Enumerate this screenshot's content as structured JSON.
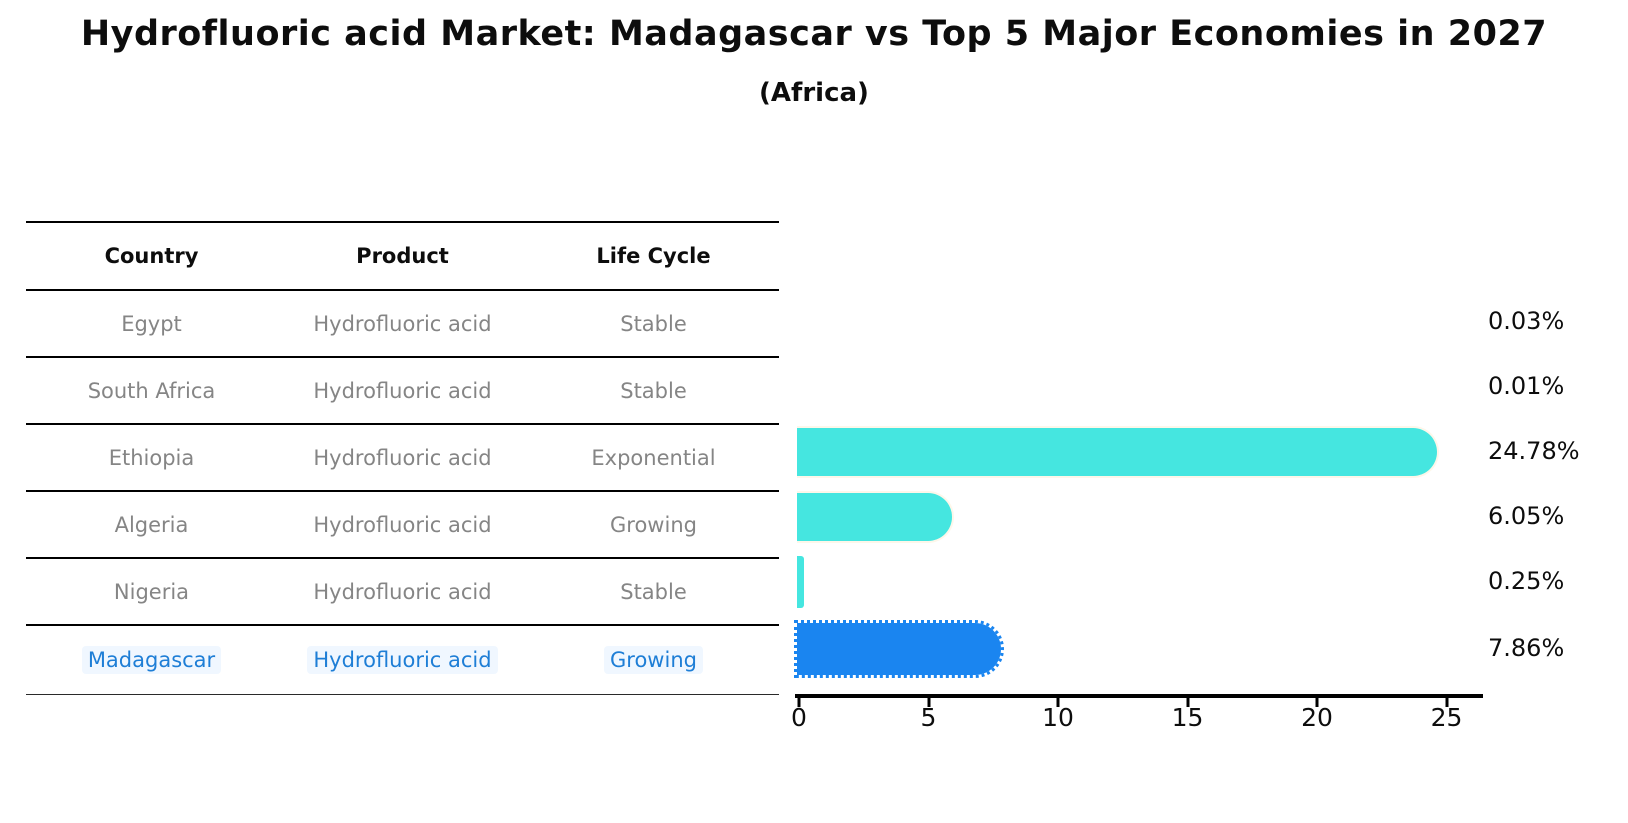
{
  "title": "Hydrofluoric acid Market: Madagascar vs Top 5 Major Economies in 2027",
  "subtitle": "(Africa)",
  "table": {
    "headers": [
      "Country",
      "Product",
      "Life Cycle"
    ],
    "rows": [
      {
        "country": "Egypt",
        "product": "Hydrofluoric acid",
        "life_cycle": "Stable",
        "highlight": false
      },
      {
        "country": "South Africa",
        "product": "Hydrofluoric acid",
        "life_cycle": "Stable",
        "highlight": false
      },
      {
        "country": "Ethiopia",
        "product": "Hydrofluoric acid",
        "life_cycle": "Exponential",
        "highlight": false
      },
      {
        "country": "Algeria",
        "product": "Hydrofluoric acid",
        "life_cycle": "Growing",
        "highlight": false
      },
      {
        "country": "Nigeria",
        "product": "Hydrofluoric acid",
        "life_cycle": "Stable",
        "highlight": false
      },
      {
        "country": "Madagascar",
        "product": "Hydrofluoric acid",
        "life_cycle": "Growing",
        "highlight": true
      }
    ]
  },
  "chart_data": {
    "type": "bar",
    "orientation": "horizontal",
    "title": "Hydrofluoric acid Market: Madagascar vs Top 5 Major Economies in 2027",
    "subtitle": "(Africa)",
    "categories": [
      "Egypt",
      "South Africa",
      "Ethiopia",
      "Algeria",
      "Nigeria",
      "Madagascar"
    ],
    "values": [
      0.03,
      0.01,
      24.78,
      6.05,
      0.25,
      7.86
    ],
    "labels": [
      "0.03%",
      "0.01%",
      "24.78%",
      "6.05%",
      "0.25%",
      "7.86%"
    ],
    "xticks": [
      0,
      5,
      10,
      15,
      20,
      25
    ],
    "xlim": [
      0,
      26.6
    ],
    "grid": false,
    "legend": false,
    "highlight_index": 5,
    "bar_color_default": "#45e6e0",
    "bar_color_highlight": "#1a85f0",
    "highlight_bar_style": "dotted-edge",
    "highlight_text_color": "#1e7ed6",
    "row_text_color": "#858585",
    "axis_color": "#000000"
  }
}
